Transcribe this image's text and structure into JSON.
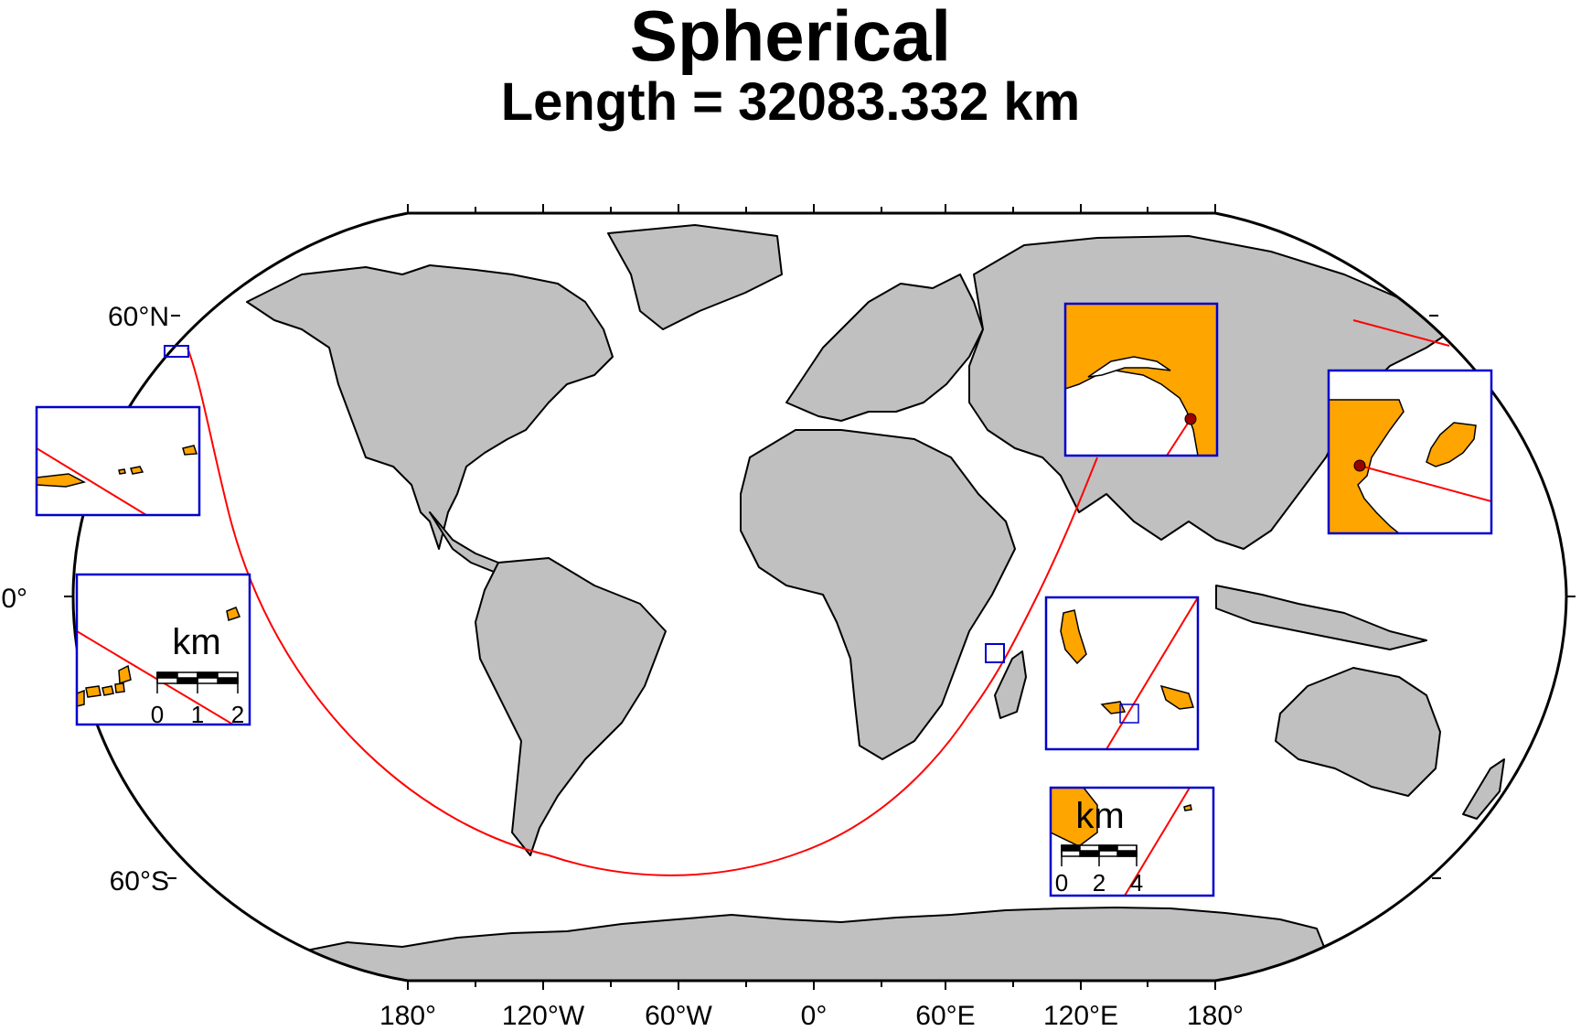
{
  "title": "Spherical",
  "subtitle": "Length = 32083.332 km",
  "map": {
    "projection": "Winkel tripel / Robinson-like world",
    "land_color": "#c0c0c0",
    "ocean_color": "#ffffff",
    "coastline_color": "#000000",
    "route_color": "#ff0000",
    "inset_border_color": "#0000cc",
    "inset_land_color": "#ffa500",
    "marker_color": "#990000",
    "longitude_labels": [
      "180°",
      "120°W",
      "60°W",
      "0°",
      "60°E",
      "120°E",
      "180°"
    ],
    "latitude_labels": {
      "north": "60°N",
      "equator": "0°",
      "south": "60°S"
    },
    "route_description": "Great circle path",
    "insets": [
      {
        "id": "aleutian-inset",
        "has_scalebar": false
      },
      {
        "id": "aleutian-zoom-inset",
        "has_scalebar": true,
        "unit": "km",
        "ticks": [
          "0",
          "1",
          "2"
        ]
      },
      {
        "id": "himalaya-inset",
        "has_scalebar": false
      },
      {
        "id": "comoros-inset",
        "has_scalebar": false
      },
      {
        "id": "comoros-zoom-inset",
        "has_scalebar": true,
        "unit": "km",
        "ticks": [
          "0",
          "2",
          "4"
        ]
      },
      {
        "id": "korea-inset",
        "has_scalebar": false
      }
    ]
  }
}
